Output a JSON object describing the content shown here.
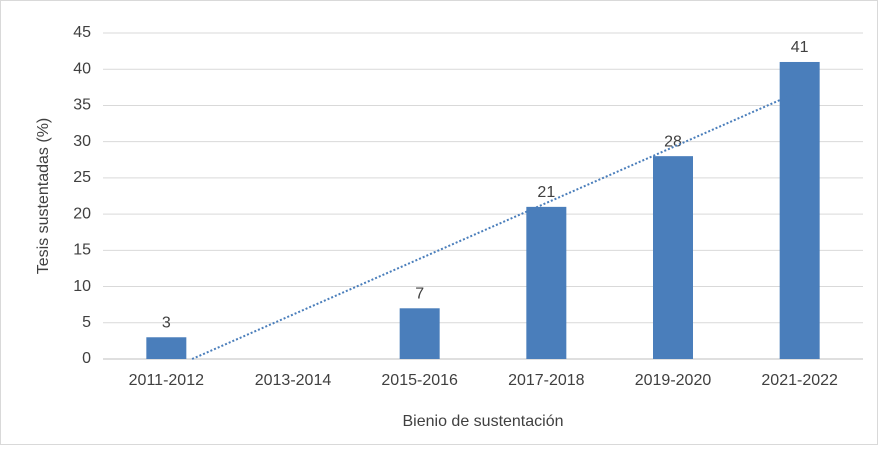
{
  "chart_data": {
    "type": "bar",
    "x_label": "Bienio de sustentación",
    "y_label": "Tesis sustentadas (%)",
    "categories": [
      "2011-2012",
      "2013-2014",
      "2015-2016",
      "2017-2018",
      "2019-2020",
      "2021-2022"
    ],
    "values": [
      3,
      null,
      7,
      21,
      28,
      41
    ],
    "color": "#4a7ebb",
    "ylim": [
      0,
      45
    ],
    "yticks": [
      0,
      5,
      10,
      15,
      20,
      25,
      30,
      35,
      40,
      45
    ],
    "grid": true,
    "trendline": "linear",
    "trendline_color": "#4a7ebb"
  }
}
